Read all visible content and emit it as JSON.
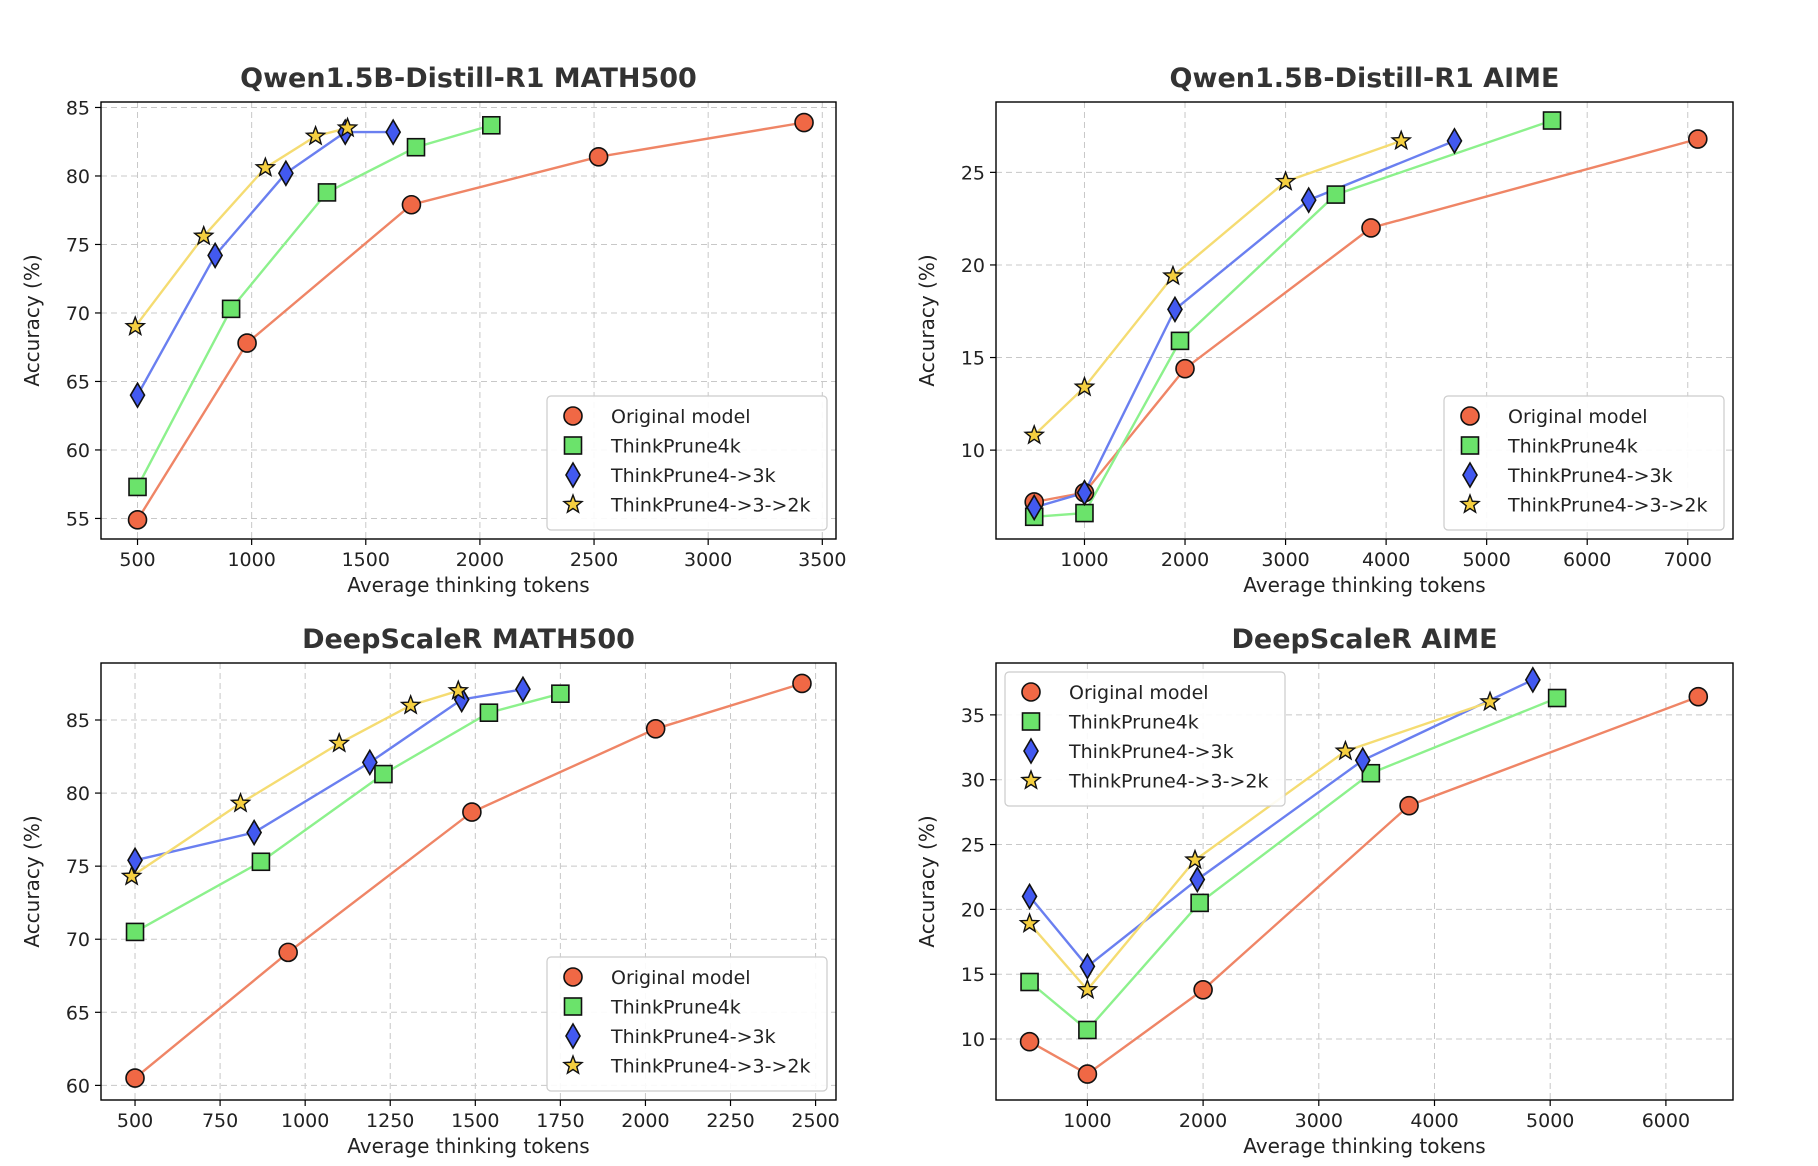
{
  "chart_data": [
    {
      "type": "line",
      "title": "Qwen1.5B-Distill-R1 MATH500",
      "xlabel": "Average thinking tokens",
      "ylabel": "Accuracy (%)",
      "xlim": [
        340,
        3560
      ],
      "ylim": [
        53.5,
        85.4
      ],
      "xticks": [
        500,
        1000,
        1500,
        2000,
        2500,
        3000,
        3500
      ],
      "yticks": [
        55,
        60,
        65,
        70,
        75,
        80,
        85
      ],
      "grid": true,
      "legend_position": "lower-right",
      "series": [
        {
          "name": "Original model",
          "x": [
            500,
            980,
            1700,
            2520,
            3420
          ],
          "y": [
            54.9,
            67.8,
            77.9,
            81.4,
            83.9
          ]
        },
        {
          "name": "ThinkPrune4k",
          "x": [
            500,
            910,
            1330,
            1720,
            2050
          ],
          "y": [
            57.3,
            70.3,
            78.8,
            82.1,
            83.7
          ]
        },
        {
          "name": "ThinkPrune4->3k",
          "x": [
            500,
            840,
            1150,
            1410,
            1620
          ],
          "y": [
            64.0,
            74.2,
            80.2,
            83.2,
            83.2
          ]
        },
        {
          "name": "ThinkPrune4->3->2k",
          "x": [
            490,
            790,
            1060,
            1280,
            1420
          ],
          "y": [
            69.0,
            75.6,
            80.6,
            82.9,
            83.5
          ]
        }
      ]
    },
    {
      "type": "line",
      "title": "Qwen1.5B-Distill-R1 AIME",
      "xlabel": "Average thinking tokens",
      "ylabel": "Accuracy (%)",
      "xlim": [
        120,
        7450
      ],
      "ylim": [
        5.2,
        28.8
      ],
      "xticks": [
        1000,
        2000,
        3000,
        4000,
        5000,
        6000,
        7000
      ],
      "yticks": [
        10,
        15,
        20,
        25
      ],
      "grid": true,
      "legend_position": "lower-right",
      "series": [
        {
          "name": "Original model",
          "x": [
            500,
            1000,
            2000,
            3850,
            7100
          ],
          "y": [
            7.2,
            7.7,
            14.4,
            22.0,
            26.8
          ]
        },
        {
          "name": "ThinkPrune4k",
          "x": [
            500,
            1000,
            1950,
            3500,
            5650
          ],
          "y": [
            6.4,
            6.6,
            15.9,
            23.8,
            27.8
          ]
        },
        {
          "name": "ThinkPrune4->3k",
          "x": [
            500,
            1000,
            1900,
            3230,
            4680
          ],
          "y": [
            6.9,
            7.7,
            17.6,
            23.5,
            26.7
          ]
        },
        {
          "name": "ThinkPrune4->3->2k",
          "x": [
            500,
            1000,
            1880,
            3000,
            4150
          ],
          "y": [
            10.8,
            13.4,
            19.4,
            24.5,
            26.7
          ]
        }
      ]
    },
    {
      "type": "line",
      "title": "DeepScaleR MATH500",
      "xlabel": "Average thinking tokens",
      "ylabel": "Accuracy (%)",
      "xlim": [
        400,
        2560
      ],
      "ylim": [
        59.0,
        88.9
      ],
      "xticks": [
        500,
        750,
        1000,
        1250,
        1500,
        1750,
        2000,
        2250,
        2500
      ],
      "yticks": [
        60,
        65,
        70,
        75,
        80,
        85
      ],
      "grid": true,
      "legend_position": "lower-right",
      "series": [
        {
          "name": "Original model",
          "x": [
            500,
            950,
            1490,
            2030,
            2460
          ],
          "y": [
            60.5,
            69.1,
            78.7,
            84.4,
            87.5
          ]
        },
        {
          "name": "ThinkPrune4k",
          "x": [
            500,
            870,
            1230,
            1540,
            1750
          ],
          "y": [
            70.5,
            75.3,
            81.3,
            85.5,
            86.8
          ]
        },
        {
          "name": "ThinkPrune4->3k",
          "x": [
            500,
            850,
            1190,
            1460,
            1640
          ],
          "y": [
            75.4,
            77.3,
            82.1,
            86.4,
            87.1
          ]
        },
        {
          "name": "ThinkPrune4->3->2k",
          "x": [
            490,
            810,
            1100,
            1310,
            1450
          ],
          "y": [
            74.3,
            79.3,
            83.4,
            86.0,
            87.0
          ]
        }
      ]
    },
    {
      "type": "line",
      "title": "DeepScaleR AIME",
      "xlabel": "Average thinking tokens",
      "ylabel": "Accuracy (%)",
      "xlim": [
        210,
        6580
      ],
      "ylim": [
        5.3,
        39.0
      ],
      "xticks": [
        1000,
        2000,
        3000,
        4000,
        5000,
        6000
      ],
      "yticks": [
        10,
        15,
        20,
        25,
        30,
        35
      ],
      "grid": true,
      "legend_position": "upper-left",
      "series": [
        {
          "name": "Original model",
          "x": [
            500,
            1000,
            2000,
            3780,
            6280
          ],
          "y": [
            9.8,
            7.3,
            13.8,
            28.0,
            36.4
          ]
        },
        {
          "name": "ThinkPrune4k",
          "x": [
            500,
            1000,
            1970,
            3450,
            5060
          ],
          "y": [
            14.4,
            10.7,
            20.5,
            30.5,
            36.3
          ]
        },
        {
          "name": "ThinkPrune4->3k",
          "x": [
            500,
            1000,
            1950,
            3380,
            4850
          ],
          "y": [
            21.0,
            15.6,
            22.3,
            31.5,
            37.7
          ]
        },
        {
          "name": "ThinkPrune4->3->2k",
          "x": [
            500,
            1000,
            1930,
            3230,
            4480
          ],
          "y": [
            18.9,
            13.8,
            23.8,
            32.2,
            36.0
          ]
        }
      ]
    }
  ],
  "series_styles": [
    {
      "line_color": "#ef8566",
      "marker_fill": "#f06845",
      "marker": "circle"
    },
    {
      "line_color": "#8cf18c",
      "marker_fill": "#6be36b",
      "marker": "square"
    },
    {
      "line_color": "#6a7ff0",
      "marker_fill": "#4259f0",
      "marker": "diamond"
    },
    {
      "line_color": "#f5dc72",
      "marker_fill": "#f5cf40",
      "marker": "star"
    }
  ]
}
